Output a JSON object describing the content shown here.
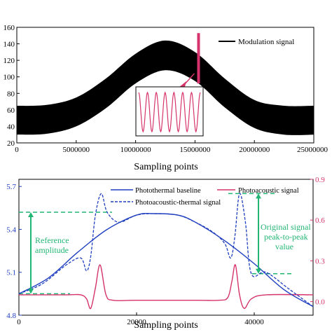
{
  "colors": {
    "black": "#000000",
    "photoacoustic": "#d6336c",
    "photothermal": "#1f3fbf",
    "annotation": "#22b573"
  },
  "chart_data": [
    {
      "type": "area",
      "xlabel": "Sampling points",
      "ylabel": "",
      "xlim": [
        0,
        25000000
      ],
      "ylim": [
        20,
        160
      ],
      "x_ticks": [
        0,
        5000000,
        10000000,
        15000000,
        20000000,
        25000000
      ],
      "x_tick_labels": [
        "0",
        "5000000",
        "10000000",
        "15000000",
        "20000000",
        "25000000"
      ],
      "y_ticks": [
        20,
        40,
        60,
        80,
        100,
        120,
        140,
        160
      ],
      "y_tick_labels": [
        "20",
        "40",
        "60",
        "80",
        "100",
        "120",
        "140",
        "160"
      ],
      "legend": "top-right",
      "series": [
        {
          "name": "Modulation signal",
          "x": [
            0,
            2500000,
            5000000,
            7500000,
            10000000,
            12500000,
            15000000,
            17500000,
            20000000,
            22500000,
            25000000
          ],
          "upper": [
            65,
            66,
            75,
            98,
            128,
            144,
            130,
            98,
            72,
            65,
            65
          ],
          "lower": [
            30,
            31,
            40,
            62,
            92,
            108,
            95,
            63,
            38,
            30,
            30
          ]
        }
      ],
      "marker_x": 15300000,
      "inset_cycles": 7
    },
    {
      "type": "line",
      "xlabel": "Sampling points",
      "ylabel": "",
      "xlim": [
        0,
        50000
      ],
      "ylim": [
        4.8,
        5.75
      ],
      "y2lim": [
        -0.1,
        0.9
      ],
      "x_ticks": [
        0,
        20000,
        40000
      ],
      "x_tick_labels": [
        "0",
        "20000",
        "40000"
      ],
      "y_ticks": [
        4.8,
        5.1,
        5.4,
        5.7
      ],
      "y_tick_labels": [
        "4.8",
        "5.1",
        "5.4",
        "5.7"
      ],
      "y2_ticks": [
        0.0,
        0.3,
        0.6,
        0.9
      ],
      "y2_tick_labels": [
        "0.0",
        "0.3",
        "0.6",
        "0.9"
      ],
      "legend": "top",
      "series": [
        {
          "name": "Photothermal baseline",
          "axis": "left",
          "x": [
            0,
            5000,
            10000,
            15000,
            20000,
            23000,
            27000,
            30000,
            35000,
            40000,
            45000,
            50000
          ],
          "y": [
            4.95,
            5.06,
            5.24,
            5.4,
            5.5,
            5.51,
            5.5,
            5.45,
            5.32,
            5.16,
            4.98,
            4.86
          ]
        },
        {
          "name": "Photoacoustic-thermal signal",
          "axis": "left",
          "x": [
            0,
            4000,
            8000,
            10500,
            11500,
            12200,
            13000,
            14000,
            15000,
            17000,
            20000,
            23000,
            27000,
            30000,
            33000,
            35000,
            36000,
            36700,
            37500,
            38500,
            39500,
            42000,
            46000,
            50000
          ],
          "y": [
            4.95,
            5.02,
            5.15,
            5.2,
            5.11,
            5.21,
            5.5,
            5.65,
            5.52,
            5.45,
            5.5,
            5.51,
            5.5,
            5.45,
            5.38,
            5.3,
            5.2,
            5.35,
            5.65,
            5.45,
            5.09,
            5.1,
            4.98,
            4.86
          ]
        },
        {
          "name": "Photoacoustic signal",
          "axis": "right",
          "x": [
            0,
            8000,
            10500,
            11500,
            12200,
            13000,
            13800,
            14800,
            16000,
            20000,
            30000,
            34000,
            35500,
            36200,
            36800,
            37500,
            38300,
            39500,
            42000,
            50000
          ],
          "y": [
            0.05,
            0.05,
            0.05,
            0.02,
            -0.05,
            0.1,
            0.27,
            0.05,
            0.01,
            0.01,
            0.01,
            0.01,
            0.03,
            0.15,
            0.27,
            0.05,
            -0.05,
            0.02,
            0.05,
            0.05
          ]
        }
      ],
      "annotations": [
        {
          "text_lines": [
            "Reference",
            "amplitude"
          ]
        },
        {
          "text_lines": [
            "Original signal",
            "peak-to-peak",
            "value"
          ]
        }
      ],
      "ref_levels_left": [
        5.52,
        4.95
      ],
      "orig_levels_left": [
        5.65,
        5.09
      ]
    }
  ]
}
